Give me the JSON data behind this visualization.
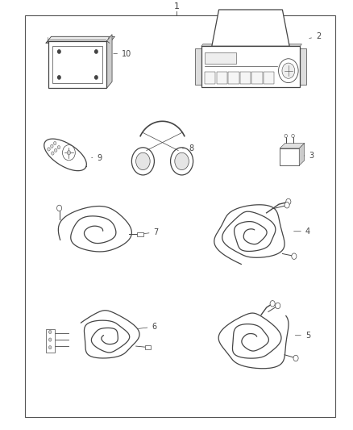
{
  "bg_color": "#ffffff",
  "border_color": "#555555",
  "line_color": "#444444",
  "fig_width": 4.38,
  "fig_height": 5.33,
  "border": [
    0.07,
    0.03,
    0.95,
    0.965
  ]
}
